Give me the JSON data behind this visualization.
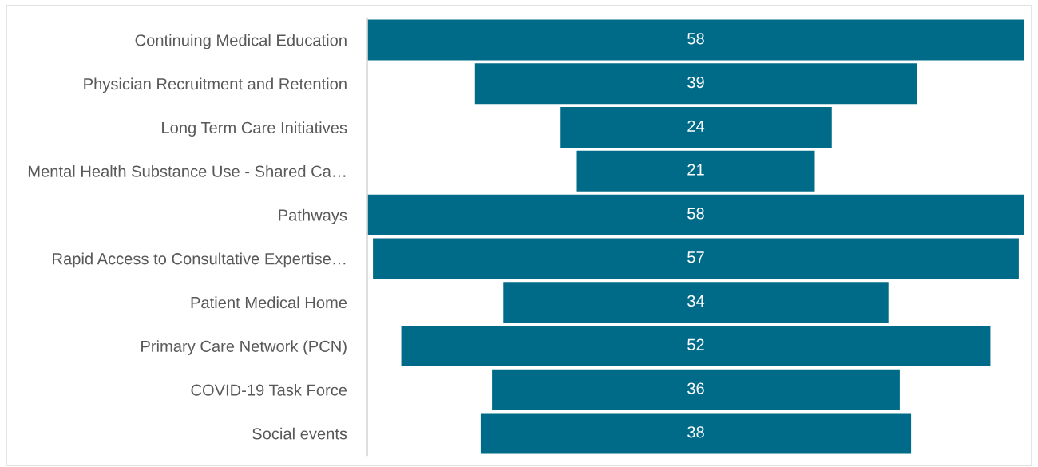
{
  "chart_data": {
    "type": "other",
    "categories": [
      "Continuing Medical Education",
      "Physician Recruitment and Retention",
      "Long Term Care Initiatives",
      "Mental Health Substance Use - Shared Ca…",
      "Pathways",
      "Rapid Access to Consultative Expertise…",
      "Patient Medical Home",
      "Primary Care Network (PCN)",
      "COVID-19 Task Force",
      "Social events"
    ],
    "values": [
      58,
      39,
      24,
      21,
      58,
      57,
      34,
      52,
      36,
      38
    ],
    "color": "#006b88",
    "data_labels": true
  }
}
